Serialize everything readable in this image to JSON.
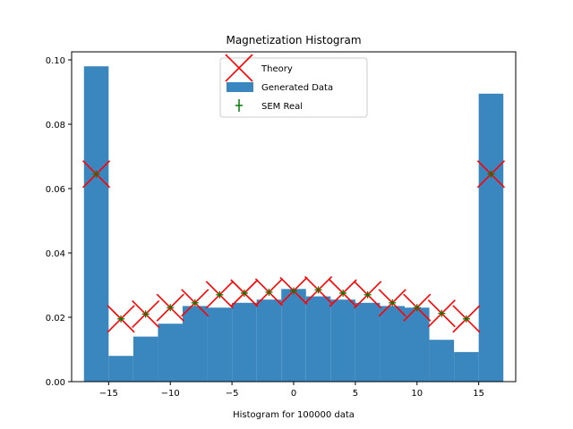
{
  "chart_data": {
    "type": "bar",
    "title": "Magnetization Histogram",
    "xlabel": "Histogram for 100000 data",
    "ylabel": "",
    "xlim": [
      -18,
      18
    ],
    "ylim": [
      0,
      0.1025
    ],
    "x_ticks": [
      -15,
      -10,
      -5,
      0,
      5,
      10,
      15
    ],
    "x_tick_labels": [
      "−15",
      "−10",
      "−5",
      "0",
      "5",
      "10",
      "15"
    ],
    "y_ticks": [
      0.0,
      0.02,
      0.04,
      0.06,
      0.08,
      0.1
    ],
    "y_tick_labels": [
      "0.00",
      "0.02",
      "0.04",
      "0.06",
      "0.08",
      "0.10"
    ],
    "grid": false,
    "legend_position": "top-center",
    "series": [
      {
        "name": "Generated Data",
        "kind": "histogram",
        "color": "#3a87bf",
        "bins": [
          {
            "x0": -17,
            "x1": -15,
            "value": 0.098
          },
          {
            "x0": -15,
            "x1": -13,
            "value": 0.008
          },
          {
            "x0": -13,
            "x1": -11,
            "value": 0.014
          },
          {
            "x0": -11,
            "x1": -9,
            "value": 0.018
          },
          {
            "x0": -9,
            "x1": -7,
            "value": 0.0235
          },
          {
            "x0": -7,
            "x1": -5,
            "value": 0.023
          },
          {
            "x0": -5,
            "x1": -3,
            "value": 0.0245
          },
          {
            "x0": -3,
            "x1": -1,
            "value": 0.0255
          },
          {
            "x0": -1,
            "x1": 1,
            "value": 0.0288
          },
          {
            "x0": 1,
            "x1": 3,
            "value": 0.0265
          },
          {
            "x0": 3,
            "x1": 5,
            "value": 0.0255
          },
          {
            "x0": 5,
            "x1": 7,
            "value": 0.0245
          },
          {
            "x0": 7,
            "x1": 9,
            "value": 0.0235
          },
          {
            "x0": 9,
            "x1": 11,
            "value": 0.023
          },
          {
            "x0": 11,
            "x1": 13,
            "value": 0.013
          },
          {
            "x0": 13,
            "x1": 15,
            "value": 0.0092
          },
          {
            "x0": 15,
            "x1": 17,
            "value": 0.0895
          }
        ]
      },
      {
        "name": "Theory",
        "kind": "markers",
        "marker": "x",
        "color": "#ff0000",
        "x": [
          -16,
          -14,
          -12,
          -10,
          -8,
          -6,
          -4,
          -2,
          0,
          2,
          4,
          6,
          8,
          10,
          12,
          14,
          16
        ],
        "y": [
          0.0645,
          0.0195,
          0.021,
          0.023,
          0.0245,
          0.027,
          0.0275,
          0.0278,
          0.0282,
          0.0285,
          0.0275,
          0.027,
          0.0245,
          0.023,
          0.0212,
          0.0195,
          0.0645
        ]
      },
      {
        "name": "SEM Real",
        "kind": "errorbar",
        "marker": "+",
        "color": "#008000",
        "x": [
          -16,
          -14,
          -12,
          -10,
          -8,
          -6,
          -4,
          -2,
          0,
          2,
          4,
          6,
          8,
          10,
          12,
          14,
          16
        ],
        "y": [
          0.0645,
          0.0195,
          0.021,
          0.023,
          0.0245,
          0.027,
          0.0275,
          0.0278,
          0.0282,
          0.0285,
          0.0275,
          0.027,
          0.0245,
          0.023,
          0.0212,
          0.0195,
          0.0645
        ]
      }
    ]
  }
}
